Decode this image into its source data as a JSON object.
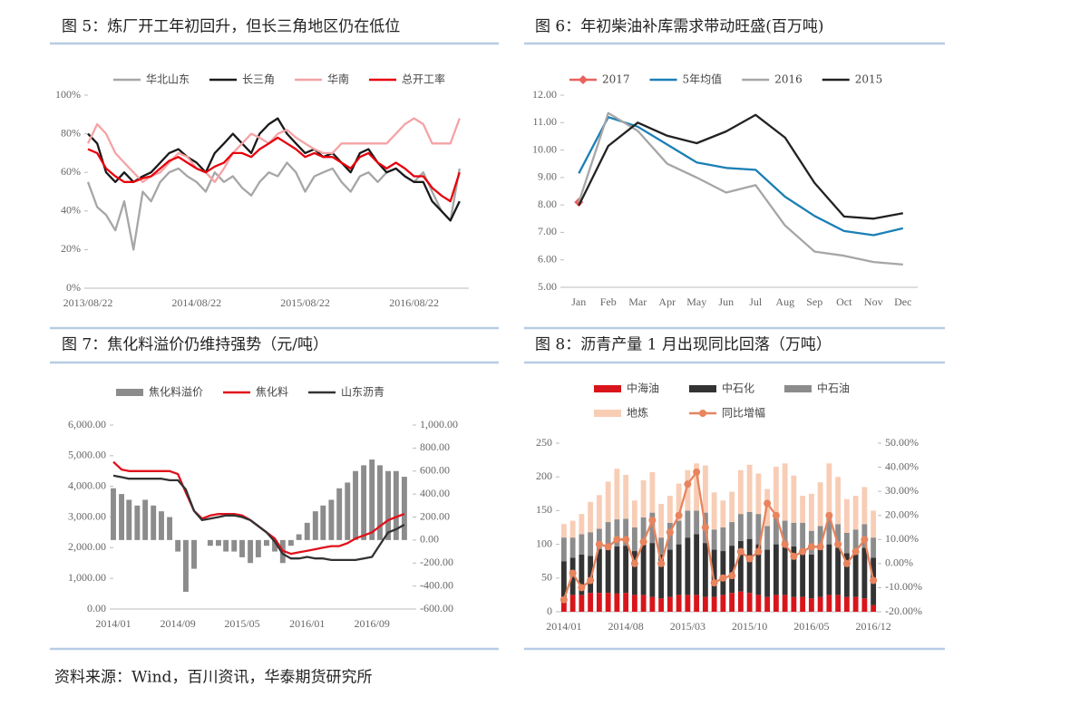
{
  "chart_data": [
    {
      "type": "line",
      "title": "图 5：炼厂开工年初回升，但长三角地区仍在低位",
      "legend": "top",
      "x": [
        "2013/08/22",
        "2013/09/22",
        "2013/10/22",
        "2013/11/22",
        "2013/12/22",
        "2014/01/22",
        "2014/02/22",
        "2014/03/22",
        "2014/04/22",
        "2014/05/22",
        "2014/06/22",
        "2014/07/22",
        "2014/08/22",
        "2014/09/22",
        "2014/10/22",
        "2014/11/22",
        "2014/12/22",
        "2015/01/22",
        "2015/02/22",
        "2015/03/22",
        "2015/04/22",
        "2015/05/22",
        "2015/06/22",
        "2015/07/22",
        "2015/08/22",
        "2015/09/22",
        "2015/10/22",
        "2015/11/22",
        "2015/12/22",
        "2016/01/22",
        "2016/02/22",
        "2016/03/22",
        "2016/04/22",
        "2016/05/22",
        "2016/06/22",
        "2016/07/22",
        "2016/08/22",
        "2016/09/22",
        "2016/10/22",
        "2016/11/22",
        "2016/12/22",
        "2017/01/22"
      ],
      "xlim": [
        "2013/08/22",
        "2017/02/22"
      ],
      "xticks": [
        "2013/08/22",
        "2014/08/22",
        "2015/08/22",
        "2016/08/22"
      ],
      "ylim": [
        0,
        100
      ],
      "yticks": [
        {
          "value": 0,
          "label": "0%"
        },
        {
          "value": 20,
          "label": "20%"
        },
        {
          "value": 40,
          "label": "40%"
        },
        {
          "value": 60,
          "label": "60%"
        },
        {
          "value": 80,
          "label": "80%"
        },
        {
          "value": 100,
          "label": "100%"
        }
      ],
      "series": [
        {
          "name": "华北山东",
          "color": "#a6a6a6",
          "values": [
            55,
            42,
            38,
            30,
            45,
            20,
            50,
            45,
            55,
            60,
            62,
            58,
            55,
            50,
            60,
            55,
            58,
            52,
            48,
            55,
            60,
            58,
            65,
            60,
            50,
            58,
            60,
            62,
            55,
            50,
            58,
            60,
            55,
            60,
            62,
            58,
            55,
            60,
            50,
            40,
            35,
            62
          ]
        },
        {
          "name": "长三角",
          "color": "#1a1a1a",
          "values": [
            80,
            75,
            60,
            55,
            60,
            55,
            58,
            60,
            65,
            70,
            72,
            68,
            65,
            60,
            70,
            75,
            80,
            75,
            70,
            80,
            85,
            88,
            80,
            75,
            70,
            72,
            68,
            70,
            65,
            60,
            70,
            72,
            65,
            60,
            62,
            58,
            55,
            55,
            45,
            40,
            35,
            45
          ]
        },
        {
          "name": "华南",
          "color": "#f5a3a5",
          "values": [
            75,
            85,
            80,
            70,
            65,
            60,
            55,
            58,
            60,
            65,
            70,
            68,
            62,
            60,
            55,
            62,
            70,
            75,
            80,
            78,
            75,
            80,
            82,
            78,
            75,
            72,
            70,
            70,
            75,
            75,
            75,
            75,
            75,
            75,
            80,
            85,
            88,
            85,
            75,
            75,
            75,
            88
          ]
        },
        {
          "name": "总开工率",
          "color": "#e8000b",
          "values": [
            72,
            70,
            62,
            58,
            55,
            55,
            57,
            58,
            62,
            66,
            68,
            65,
            62,
            60,
            63,
            65,
            70,
            70,
            68,
            72,
            75,
            78,
            75,
            72,
            68,
            70,
            68,
            68,
            65,
            62,
            68,
            70,
            65,
            62,
            65,
            62,
            58,
            58,
            52,
            48,
            45,
            60
          ]
        }
      ]
    },
    {
      "type": "line",
      "title": "图 6：年初柴油补库需求带动旺盛(百万吨)",
      "legend": "top",
      "categories": [
        "Jan",
        "Feb",
        "Mar",
        "Apr",
        "May",
        "Jun",
        "Jul",
        "Aug",
        "Sep",
        "Oct",
        "Nov",
        "Dec"
      ],
      "ylim": [
        5,
        12
      ],
      "yticks": [
        {
          "value": 5,
          "label": "5.00"
        },
        {
          "value": 6,
          "label": "6.00"
        },
        {
          "value": 7,
          "label": "7.00"
        },
        {
          "value": 8,
          "label": "8.00"
        },
        {
          "value": 9,
          "label": "9.00"
        },
        {
          "value": 10,
          "label": "10.00"
        },
        {
          "value": 11,
          "label": "11.00"
        },
        {
          "value": 12,
          "label": "12.00"
        }
      ],
      "series": [
        {
          "name": "2017",
          "color": "#e8615d",
          "marker": "diamond",
          "values": [
            8.1,
            null,
            null,
            null,
            null,
            null,
            null,
            null,
            null,
            null,
            null,
            null
          ]
        },
        {
          "name": "5年均值",
          "color": "#1b7fb5",
          "values": [
            9.15,
            11.2,
            10.85,
            10.2,
            9.55,
            9.35,
            9.28,
            8.3,
            7.6,
            7.05,
            6.9,
            7.15
          ]
        },
        {
          "name": "2016",
          "color": "#a6a6a6",
          "values": [
            8.1,
            11.35,
            10.7,
            9.5,
            9.0,
            8.45,
            8.72,
            7.25,
            6.3,
            6.15,
            5.92,
            5.83
          ]
        },
        {
          "name": "2015",
          "color": "#222222",
          "values": [
            7.98,
            10.15,
            11.0,
            10.52,
            10.25,
            10.68,
            11.28,
            10.45,
            8.8,
            7.58,
            7.5,
            7.7
          ]
        }
      ]
    },
    {
      "type": "bar",
      "title": "图 7：焦化料溢价仍维持强势（元/吨）",
      "legend": "top",
      "x": [
        "2014/01",
        "2014/02",
        "2014/03",
        "2014/04",
        "2014/05",
        "2014/06",
        "2014/07",
        "2014/08",
        "2014/09",
        "2014/10",
        "2014/11",
        "2014/12",
        "2015/01",
        "2015/02",
        "2015/03",
        "2015/04",
        "2015/05",
        "2015/06",
        "2015/07",
        "2015/08",
        "2015/09",
        "2015/10",
        "2015/11",
        "2015/12",
        "2016/01",
        "2016/02",
        "2016/03",
        "2016/04",
        "2016/05",
        "2016/06",
        "2016/07",
        "2016/08",
        "2016/09",
        "2016/10",
        "2016/11",
        "2016/12",
        "2017/01"
      ],
      "xlim": [
        "2014/01",
        "2017/02"
      ],
      "xticks": [
        "2014/01",
        "2014/09",
        "2015/05",
        "2016/01",
        "2016/09"
      ],
      "ylim": [
        0,
        6000
      ],
      "yticks": [
        {
          "value": 0,
          "label": "0.00"
        },
        {
          "value": 1000,
          "label": "1,000.00"
        },
        {
          "value": 2000,
          "label": "2,000.00"
        },
        {
          "value": 3000,
          "label": "3,000.00"
        },
        {
          "value": 4000,
          "label": "4,000.00"
        },
        {
          "value": 5000,
          "label": "5,000.00"
        },
        {
          "value": 6000,
          "label": "6,000.00"
        }
      ],
      "y2lim": [
        -600,
        1000
      ],
      "y2ticks": [
        {
          "value": -600,
          "label": "-600.00"
        },
        {
          "value": -400,
          "label": "-400.00"
        },
        {
          "value": -200,
          "label": "-200.00"
        },
        {
          "value": 0,
          "label": "0.00"
        },
        {
          "value": 200,
          "label": "200.00"
        },
        {
          "value": 400,
          "label": "400.00"
        },
        {
          "value": 600,
          "label": "600.00"
        },
        {
          "value": 800,
          "label": "800.00"
        },
        {
          "value": 1000,
          "label": "1,000.00"
        }
      ],
      "series": [
        {
          "name": "焦化料溢价",
          "type": "bar",
          "axis": "y2",
          "color": "#8c8c8c",
          "values": [
            450,
            400,
            350,
            300,
            350,
            300,
            250,
            200,
            -100,
            -450,
            -250,
            0,
            -50,
            -50,
            -100,
            -100,
            -150,
            -200,
            -150,
            -50,
            -100,
            -200,
            -50,
            50,
            150,
            250,
            300,
            350,
            450,
            500,
            600,
            650,
            700,
            650,
            600,
            600,
            550
          ]
        },
        {
          "name": "焦化料",
          "type": "line",
          "color": "#e0101b",
          "values": [
            4800,
            4550,
            4500,
            4500,
            4500,
            4500,
            4500,
            4500,
            4400,
            3800,
            3200,
            2950,
            3050,
            3100,
            3100,
            3100,
            3050,
            2900,
            2700,
            2500,
            2300,
            1900,
            1800,
            1850,
            1900,
            1950,
            2000,
            2050,
            2050,
            2150,
            2300,
            2400,
            2500,
            2700,
            2900,
            3000,
            3100
          ]
        },
        {
          "name": "山东沥青",
          "type": "line",
          "color": "#333333",
          "values": [
            4350,
            4300,
            4250,
            4250,
            4250,
            4250,
            4250,
            4200,
            4200,
            3900,
            3200,
            2900,
            2950,
            3000,
            3050,
            3050,
            3000,
            2900,
            2700,
            2500,
            2200,
            1800,
            1650,
            1650,
            1700,
            1650,
            1650,
            1600,
            1600,
            1600,
            1600,
            1650,
            1700,
            2100,
            2500,
            2600,
            2750
          ]
        }
      ]
    },
    {
      "type": "bar",
      "title": "图 8：沥青产量 1 月出现同比回落（万吨）",
      "legend": "top",
      "stacked": true,
      "categories": [
        "2014/01",
        null,
        null,
        null,
        null,
        null,
        null,
        "2014/08",
        null,
        null,
        null,
        null,
        null,
        null,
        "2015/03",
        null,
        null,
        null,
        null,
        null,
        null,
        "2015/10",
        null,
        null,
        null,
        null,
        null,
        null,
        "2016/05",
        null,
        null,
        null,
        null,
        null,
        null,
        "2016/12"
      ],
      "ylim": [
        0,
        250
      ],
      "yticks": [
        0,
        50,
        100,
        150,
        200,
        250
      ],
      "y2lim": [
        -20,
        50
      ],
      "y2ticks": [
        {
          "value": -20,
          "label": "-20.00%"
        },
        {
          "value": -10,
          "label": "-10.00%"
        },
        {
          "value": 0,
          "label": "0.00%"
        },
        {
          "value": 10,
          "label": "10.00%"
        },
        {
          "value": 20,
          "label": "20.00%"
        },
        {
          "value": 30,
          "label": "30.00%"
        },
        {
          "value": 40,
          "label": "40.00%"
        },
        {
          "value": 50,
          "label": "50.00%"
        }
      ],
      "series": [
        {
          "name": "中海油",
          "type": "bar",
          "color": "#d9151b",
          "values": [
            20,
            25,
            25,
            28,
            28,
            28,
            27,
            28,
            25,
            25,
            22,
            20,
            22,
            25,
            25,
            25,
            22,
            22,
            25,
            28,
            30,
            28,
            25,
            22,
            25,
            25,
            22,
            22,
            20,
            22,
            25,
            25,
            22,
            22,
            20,
            10
          ]
        },
        {
          "name": "中石化",
          "type": "bar",
          "color": "#333333",
          "values": [
            55,
            55,
            60,
            55,
            65,
            70,
            70,
            70,
            65,
            75,
            80,
            65,
            70,
            75,
            85,
            90,
            80,
            70,
            65,
            70,
            75,
            80,
            75,
            70,
            75,
            80,
            75,
            70,
            65,
            70,
            75,
            70,
            65,
            70,
            75,
            70
          ]
        },
        {
          "name": "中石油",
          "type": "bar",
          "color": "#8c8c8c",
          "values": [
            35,
            30,
            30,
            35,
            30,
            35,
            40,
            40,
            35,
            40,
            45,
            25,
            40,
            35,
            40,
            35,
            45,
            30,
            35,
            35,
            40,
            40,
            45,
            35,
            40,
            30,
            35,
            40,
            35,
            35,
            40,
            35,
            30,
            30,
            35,
            30
          ]
        },
        {
          "name": "地炼",
          "type": "bar",
          "color": "#f8cdb5",
          "values": [
            20,
            25,
            30,
            45,
            50,
            60,
            75,
            65,
            40,
            55,
            60,
            50,
            40,
            55,
            60,
            70,
            70,
            55,
            40,
            45,
            65,
            70,
            60,
            55,
            75,
            85,
            70,
            40,
            55,
            65,
            80,
            70,
            50,
            50,
            55,
            40
          ]
        },
        {
          "name": "同比增幅",
          "type": "line",
          "axis": "y2",
          "marker": "circle",
          "color": "#e8845e",
          "values": [
            -15,
            -4,
            -10,
            -7,
            8,
            7,
            10,
            10,
            0,
            9,
            18,
            0,
            13,
            20,
            33,
            38,
            15,
            -8,
            -6,
            -5,
            5,
            2,
            5,
            25,
            20,
            8,
            3,
            5,
            7,
            7,
            20,
            8,
            0,
            5,
            10,
            -7
          ]
        }
      ]
    }
  ],
  "source": "资料来源：Wind，百川资讯，华泰期货研究所"
}
